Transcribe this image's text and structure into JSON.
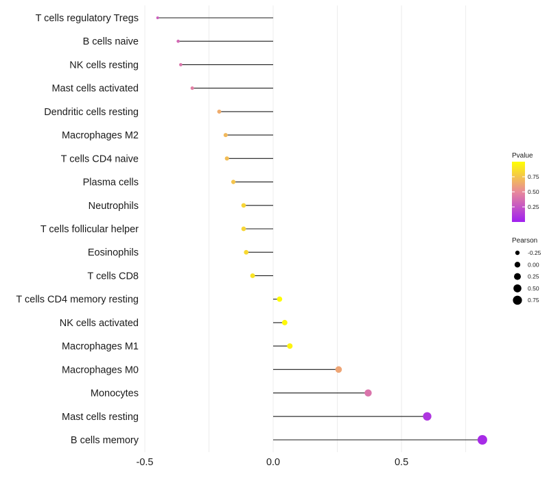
{
  "chart_data": {
    "type": "lollipop",
    "categories": [
      "T cells regulatory  Tregs",
      "B cells naive",
      "NK cells resting",
      "Mast cells activated",
      "Dendritic cells resting",
      "Macrophages M2",
      "T cells CD4 naive",
      "Plasma cells",
      "Neutrophils",
      "T cells follicular helper",
      "Eosinophils",
      "T cells CD8",
      "T cells CD4 memory resting",
      "NK cells activated",
      "Macrophages M1",
      "Macrophages M0",
      "Monocytes",
      "Mast cells resting",
      "B cells memory"
    ],
    "values": [
      -0.45,
      -0.37,
      -0.36,
      -0.315,
      -0.21,
      -0.185,
      -0.18,
      -0.155,
      -0.115,
      -0.115,
      -0.105,
      -0.08,
      0.025,
      0.045,
      0.065,
      0.255,
      0.37,
      0.6,
      0.815
    ],
    "pvalues": [
      0.3,
      0.35,
      0.4,
      0.45,
      0.65,
      0.7,
      0.72,
      0.75,
      0.82,
      0.82,
      0.84,
      0.88,
      0.99,
      0.97,
      0.95,
      0.62,
      0.4,
      0.1,
      0.05
    ],
    "xlim": [
      -0.5,
      0.85
    ],
    "xticks": [
      -0.5,
      0.0,
      0.5
    ],
    "xtick_labels": [
      "-0.5",
      "0.0",
      "0.5"
    ],
    "grid": true,
    "legend_color": {
      "title": "Pvalue",
      "range": [
        0.0,
        1.0
      ],
      "ticks": [
        0.25,
        0.5,
        0.75
      ],
      "tick_labels": [
        "0.25",
        "0.50",
        "0.75"
      ],
      "colors": [
        "#a020f0",
        "#e8899a",
        "#ffff00"
      ]
    },
    "legend_size": {
      "title": "Pearson",
      "values": [
        -0.25,
        0.0,
        0.25,
        0.5,
        0.75
      ],
      "labels": [
        "-0.25",
        "0.00",
        "0.25",
        "0.50",
        "0.75"
      ]
    },
    "stem_color": "#1a1a1a",
    "legend_position": "right"
  }
}
